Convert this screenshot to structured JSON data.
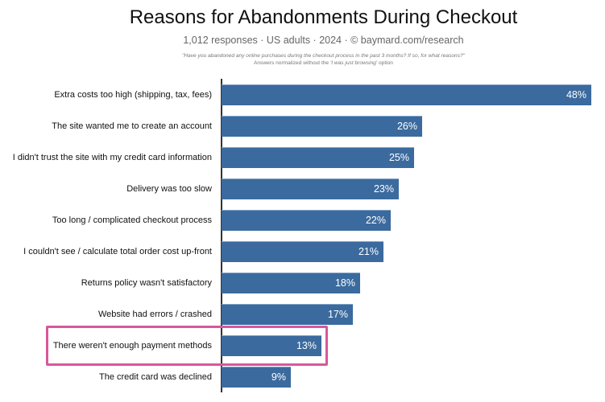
{
  "header": {
    "title": "Reasons for Abandonments During Checkout",
    "subtitle": "1,012 responses  ·  US adults  ·  2024  ·  © baymard.com/research",
    "question": "\"Have you abandoned any online purchases during the checkout process in the past 3 months? If so, for what reasons?\"",
    "note_prefix": "Answers normalized without the ",
    "note_italic": "'I was just browsing'",
    "note_suffix": " option"
  },
  "colors": {
    "bar": "#3b6a9e",
    "highlight": "#d9579b",
    "axis": "#333333"
  },
  "highlighted_index": 8,
  "chart_data": {
    "type": "bar",
    "orientation": "horizontal",
    "title": "Reasons for Abandonments During Checkout",
    "subtitle": "1,012 responses · US adults · 2024 · © baymard.com/research",
    "annotations": [
      "\"Have you abandoned any online purchases during the checkout process in the past 3 months? If so, for what reasons?\"",
      "Answers normalized without the 'I was just browsing' option",
      "Highlight box around: There weren't enough payment methods (13%)"
    ],
    "categories": [
      "Extra costs too high (shipping, tax, fees)",
      "The site wanted me to create an account",
      "I didn't trust the site with my credit card information",
      "Delivery was too slow",
      "Too long / complicated checkout process",
      "I couldn't see / calculate total order cost up-front",
      "Returns policy wasn't satisfactory",
      "Website had errors / crashed",
      "There weren't enough payment methods",
      "The credit card was declined"
    ],
    "values": [
      48,
      26,
      25,
      23,
      22,
      21,
      18,
      17,
      13,
      9
    ],
    "value_labels": [
      "48%",
      "26%",
      "25%",
      "23%",
      "22%",
      "21%",
      "18%",
      "17%",
      "13%",
      "9%"
    ],
    "xlabel": "",
    "ylabel": "",
    "xlim": [
      0,
      48
    ],
    "unit": "%",
    "grid": false,
    "legend": null
  }
}
